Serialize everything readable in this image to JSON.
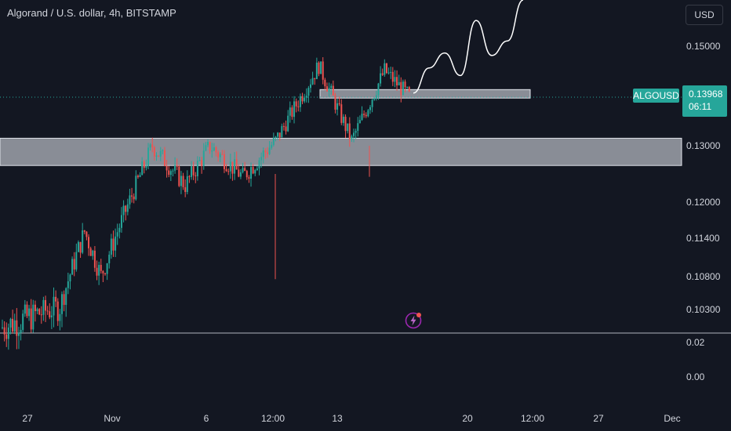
{
  "header": {
    "title": "Algorand / U.S. dollar, 4h, BITSTAMP",
    "currency_button": "USD"
  },
  "price_axis": {
    "ticks": [
      "0.15000",
      "0.13000",
      "0.12000",
      "0.11400",
      "0.10800",
      "0.10300"
    ],
    "indicator_ticks": [
      "0.02",
      "0.00"
    ]
  },
  "current_price": {
    "symbol": "ALGOUSD",
    "price": "0.13968",
    "countdown": "06:11"
  },
  "time_axis": {
    "ticks": [
      "27",
      "Nov",
      "6",
      "12:00",
      "13",
      "20",
      "12:00",
      "27",
      "Dec"
    ]
  },
  "icons": {
    "alert": "lightning-alert-icon"
  },
  "colors": {
    "background": "#131722",
    "up": "#26a69a",
    "down": "#ef5350",
    "zone": "#b2b5be",
    "projection": "#ffffff"
  },
  "chart_data": {
    "type": "candlestick",
    "title": "Algorand / U.S. dollar, 4h, BITSTAMP",
    "symbol": "ALGOUSD",
    "timeframe": "4h",
    "exchange": "BITSTAMP",
    "x_tick_labels": [
      "27",
      "Nov",
      "6",
      "12:00",
      "13",
      "20",
      "12:00",
      "27",
      "Dec"
    ],
    "y_tick_labels": [
      "0.15000",
      "0.13000",
      "0.12000",
      "0.11400",
      "0.10800",
      "0.10300"
    ],
    "ylim": [
      0.1,
      0.158
    ],
    "last_price": 0.13968,
    "support_zones": [
      [
        0.1265,
        0.1315
      ],
      [
        0.1395,
        0.1412
      ]
    ],
    "projection": [
      [
        19,
        0.1405
      ],
      [
        20,
        0.1455
      ],
      [
        21,
        0.1485
      ],
      [
        22,
        0.144
      ],
      [
        23,
        0.1555
      ],
      [
        24,
        0.148
      ],
      [
        25,
        0.151
      ],
      [
        26,
        0.16
      ]
    ],
    "candles_approx": {
      "description": "4h OHLC from late Oct to mid Nov",
      "segments": [
        {
          "start_x": 0,
          "end_x": 7,
          "start": 0.101,
          "end": 0.1035
        },
        {
          "start_x": 7,
          "end_x": 10,
          "start": 0.1035,
          "end": 0.115
        },
        {
          "start_x": 10,
          "end_x": 12,
          "start": 0.115,
          "end": 0.108
        },
        {
          "start_x": 12,
          "end_x": 18,
          "start": 0.108,
          "end": 0.13
        },
        {
          "start_x": 18,
          "end_x": 22,
          "start": 0.13,
          "end": 0.123
        },
        {
          "start_x": 22,
          "end_x": 25,
          "start": 0.123,
          "end": 0.13
        },
        {
          "start_x": 25,
          "end_x": 29,
          "start": 0.13,
          "end": 0.1245
        },
        {
          "start_x": 29,
          "end_x": 33,
          "start": 0.1245,
          "end": 0.131
        },
        {
          "start_x": 33,
          "end_x": 38,
          "start": 0.131,
          "end": 0.146
        },
        {
          "start_x": 38,
          "end_x": 42,
          "start": 0.146,
          "end": 0.131
        },
        {
          "start_x": 42,
          "end_x": 46,
          "start": 0.131,
          "end": 0.145
        },
        {
          "start_x": 46,
          "end_x": 49,
          "start": 0.145,
          "end": 0.1398
        }
      ]
    }
  }
}
